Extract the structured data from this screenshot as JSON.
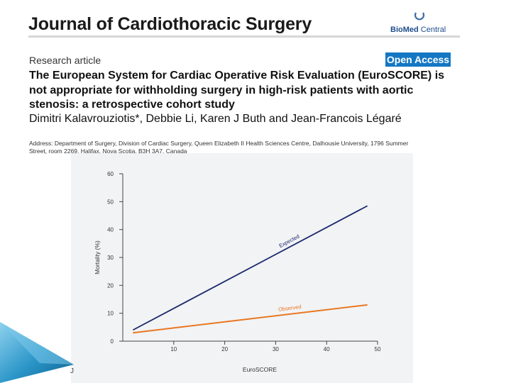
{
  "journal": {
    "title": "Journal of Cardiothoracic Surgery",
    "publisher_bold": "BioMed",
    "publisher_rest": " Central"
  },
  "article": {
    "type": "Research article",
    "open_access": "Open Access",
    "title": "The European System for Cardiac Operative Risk Evaluation (EuroSCORE) is not appropriate for withholding surgery in high-risk patients with aortic stenosis: a retrospective cohort study",
    "authors": "Dimitri Kalavrouziotis*, Debbie Li, Karen J Buth and Jean-Francois Légaré",
    "address": "Address: Department of Surgery, Division of Cardiac Surgery, Queen Elizabeth II Health Sciences Centre, Dalhousie University, 1796 Summer Street, room 2269, Halifax, Nova Scotia, B3H 3A7, Canada"
  },
  "colors": {
    "expected_line": "#1c2a6e",
    "observed_line": "#e87722",
    "open_access_bg": "#1477c4",
    "panel_bg": "#f2f3f4"
  },
  "chart_data": {
    "type": "line",
    "title": "",
    "xlabel": "EuroSCORE",
    "ylabel": "Mortality (%)",
    "xlim": [
      0,
      50
    ],
    "ylim": [
      0,
      60
    ],
    "xticks": [
      10,
      20,
      30,
      40,
      50
    ],
    "yticks": [
      0,
      10,
      20,
      30,
      40,
      50,
      60
    ],
    "grid": false,
    "series": [
      {
        "name": "Expected",
        "x": [
          2,
          48
        ],
        "y": [
          4,
          48.5
        ]
      },
      {
        "name": "Observed",
        "x": [
          2,
          48
        ],
        "y": [
          3,
          13
        ]
      }
    ]
  },
  "footer_mark": "J"
}
